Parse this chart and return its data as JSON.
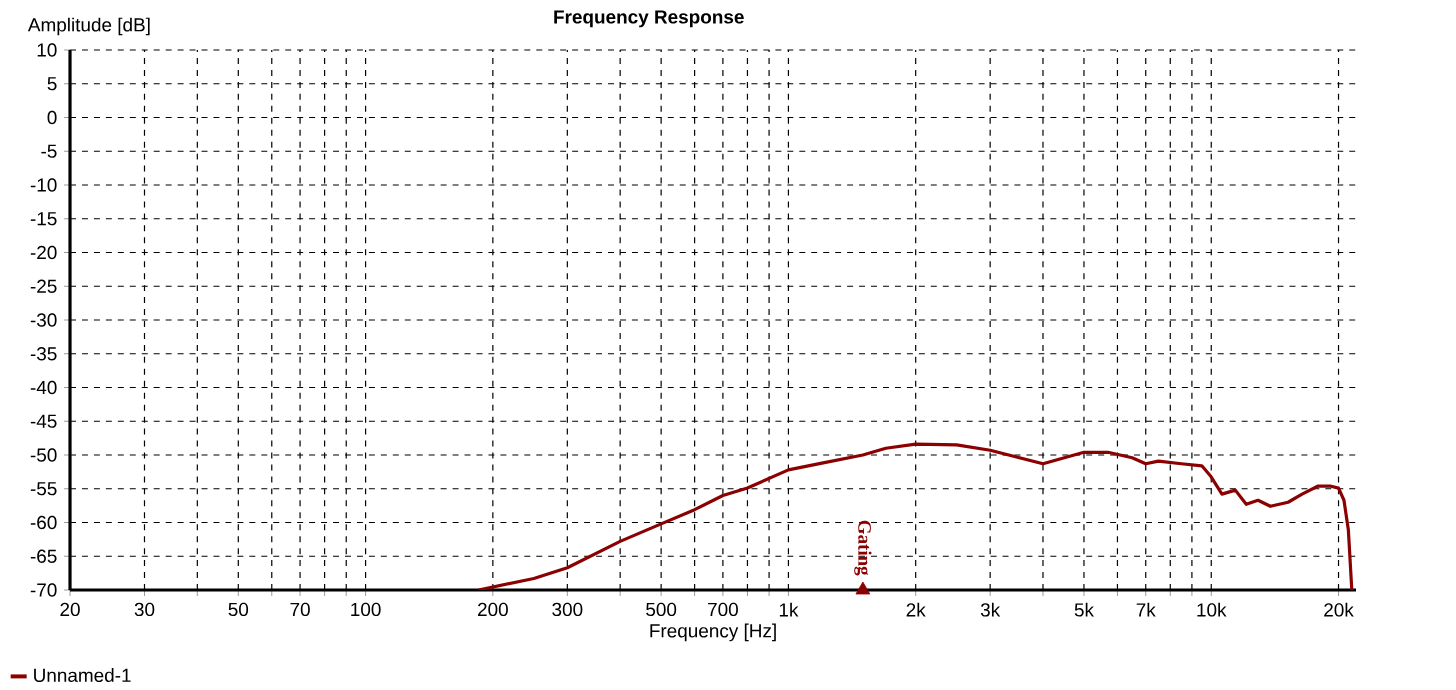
{
  "chart_data": {
    "type": "line",
    "title": "Frequency Response",
    "xlabel": "Frequency [Hz]",
    "ylabel": "Amplitude [dB]",
    "log": "x",
    "grid": true,
    "legend": "bottom left",
    "xlim": [
      20,
      22000
    ],
    "ylim": [
      -70,
      10
    ],
    "xticks": [
      20,
      30,
      {
        "value": 40,
        "label": null
      },
      50,
      {
        "value": 60,
        "label": null
      },
      70,
      {
        "value": 80,
        "label": null
      },
      {
        "value": 90,
        "label": null
      },
      100,
      200,
      300,
      {
        "value": 400,
        "label": null
      },
      500,
      {
        "value": 600,
        "label": null
      },
      700,
      {
        "value": 800,
        "label": null
      },
      {
        "value": 900,
        "label": null
      },
      {
        "value": 1000,
        "label": "1k"
      },
      {
        "value": 2000,
        "label": "2k"
      },
      {
        "value": 3000,
        "label": "3k"
      },
      {
        "value": 4000,
        "label": null
      },
      {
        "value": 5000,
        "label": "5k"
      },
      {
        "value": 6000,
        "label": null
      },
      {
        "value": 7000,
        "label": "7k"
      },
      {
        "value": 8000,
        "label": null
      },
      {
        "value": 9000,
        "label": null
      },
      {
        "value": 10000,
        "label": "10k"
      },
      {
        "value": 20000,
        "label": "20k"
      }
    ],
    "yticks": [
      10,
      5,
      0,
      -5,
      -10,
      -15,
      -20,
      -25,
      -30,
      -35,
      -40,
      -45,
      -50,
      -55,
      -60,
      -65,
      -70
    ],
    "annotations": [
      {
        "text": "Gating",
        "x": 1500,
        "y": -70
      }
    ],
    "series": [
      {
        "name": "Unnamed-1",
        "color": "#8b0000",
        "x": [
          185,
          250,
          300,
          400,
          500,
          600,
          700,
          800,
          1000,
          1200,
          1500,
          1700,
          2000,
          2500,
          3000,
          4000,
          5000,
          5700,
          6500,
          7000,
          7500,
          8500,
          9500,
          9960,
          10600,
          11400,
          12100,
          12900,
          13800,
          15200,
          16400,
          17900,
          19100,
          20000,
          20600,
          21100,
          21500
        ],
        "values": [
          -70,
          -68.3,
          -66.7,
          -62.8,
          -60.2,
          -58.1,
          -56,
          -54.9,
          -52.2,
          -51.2,
          -50,
          -49,
          -48.4,
          -48.5,
          -49.3,
          -51.3,
          -49.6,
          -49.6,
          -50.4,
          -51.3,
          -50.9,
          -51.3,
          -51.6,
          -53.1,
          -55.8,
          -55.2,
          -57.3,
          -56.7,
          -57.6,
          -57,
          -55.8,
          -54.6,
          -54.6,
          -54.9,
          -56.7,
          -61.1,
          -70
        ]
      },
      {
        "type": "scatter",
        "marker": "triangle",
        "color": "#8b0000",
        "x": [
          1500
        ],
        "values": [
          -70
        ]
      }
    ]
  }
}
